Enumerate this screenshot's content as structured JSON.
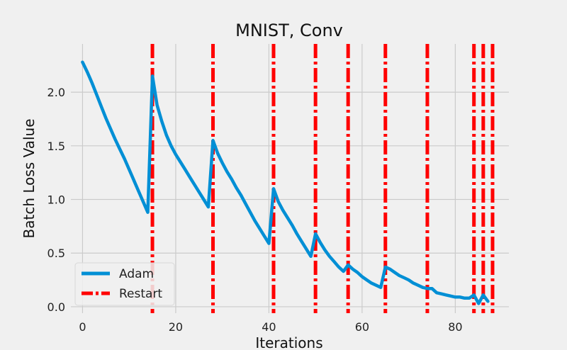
{
  "chart_data": {
    "type": "line",
    "title": "MNIST, Conv",
    "xlabel": "Iterations",
    "ylabel": "Batch Loss Value",
    "xlim": [
      -2.5,
      91.5
    ],
    "ylim": [
      -0.06,
      2.45
    ],
    "xticks": [
      0,
      20,
      40,
      60,
      80
    ],
    "yticks": [
      0.0,
      0.5,
      1.0,
      1.5,
      2.0
    ],
    "xtick_labels": [
      "0",
      "20",
      "40",
      "60",
      "80"
    ],
    "ytick_labels": [
      "0.0",
      "0.5",
      "1.0",
      "1.5",
      "2.0"
    ],
    "grid": true,
    "legend_position": "lower-left",
    "series": [
      {
        "name": "Adam",
        "color": "#008fd5",
        "style": "solid",
        "x": [
          0,
          1,
          2,
          3,
          4,
          5,
          6,
          7,
          8,
          9,
          10,
          11,
          12,
          13,
          14,
          15,
          16,
          17,
          18,
          19,
          20,
          21,
          22,
          23,
          24,
          25,
          26,
          27,
          28,
          29,
          30,
          31,
          32,
          33,
          34,
          35,
          36,
          37,
          38,
          39,
          40,
          41,
          42,
          43,
          44,
          45,
          46,
          47,
          48,
          49,
          50,
          51,
          52,
          53,
          54,
          55,
          56,
          57,
          58,
          59,
          60,
          61,
          62,
          63,
          64,
          65,
          66,
          67,
          68,
          69,
          70,
          71,
          72,
          73,
          74,
          75,
          76,
          77,
          78,
          79,
          80,
          81,
          82,
          83,
          84,
          85,
          86,
          87
        ],
        "y": [
          2.28,
          2.19,
          2.09,
          1.98,
          1.87,
          1.76,
          1.66,
          1.56,
          1.47,
          1.38,
          1.28,
          1.18,
          1.08,
          0.98,
          0.88,
          2.15,
          1.88,
          1.73,
          1.6,
          1.5,
          1.42,
          1.35,
          1.28,
          1.21,
          1.14,
          1.07,
          1.0,
          0.93,
          1.55,
          1.43,
          1.34,
          1.26,
          1.19,
          1.11,
          1.04,
          0.96,
          0.88,
          0.8,
          0.73,
          0.66,
          0.59,
          1.1,
          0.98,
          0.9,
          0.83,
          0.76,
          0.68,
          0.61,
          0.54,
          0.47,
          0.68,
          0.6,
          0.53,
          0.47,
          0.42,
          0.37,
          0.33,
          0.39,
          0.35,
          0.32,
          0.28,
          0.25,
          0.22,
          0.2,
          0.18,
          0.37,
          0.35,
          0.32,
          0.29,
          0.27,
          0.25,
          0.22,
          0.2,
          0.18,
          0.17,
          0.17,
          0.13,
          0.12,
          0.11,
          0.1,
          0.09,
          0.09,
          0.08,
          0.08,
          0.11,
          0.03,
          0.11,
          0.05
        ]
      },
      {
        "name": "Restart",
        "color": "#ff0000",
        "style": "dashdot-vertical",
        "x": [
          15,
          28,
          41,
          50,
          57,
          65,
          74,
          84,
          86,
          88
        ]
      }
    ],
    "legend": [
      "Adam",
      "Restart"
    ]
  }
}
